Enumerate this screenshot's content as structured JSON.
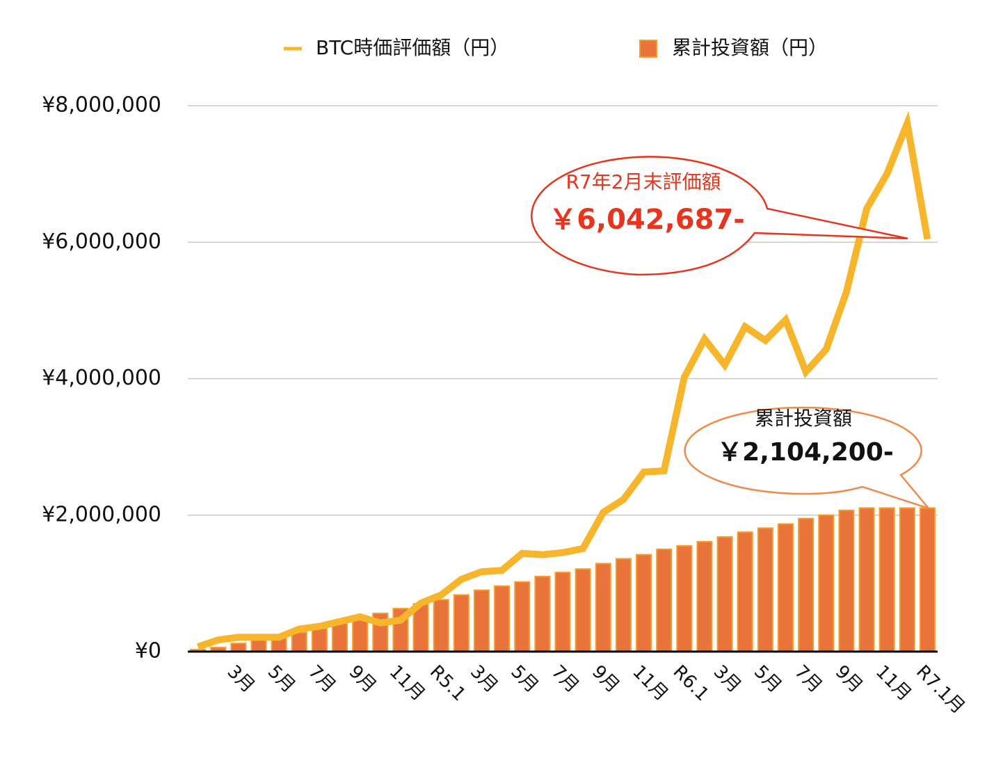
{
  "chart_data": {
    "type": "bar",
    "categories": [
      null,
      null,
      "3月",
      null,
      "5月",
      null,
      "7月",
      null,
      "9月",
      null,
      "11月",
      null,
      "R5.1",
      null,
      "3月",
      null,
      "5月",
      null,
      "7月",
      null,
      "9月",
      null,
      "11月",
      null,
      "R6.1",
      null,
      "3月",
      null,
      "5月",
      null,
      "7月",
      null,
      "9月",
      null,
      "11月",
      null,
      "R7.1月"
    ],
    "series": [
      {
        "name": "BTC時価評価額（円）",
        "type": "line",
        "color": "#f7b52c",
        "values": [
          70000,
          170000,
          210000,
          210000,
          210000,
          330000,
          370000,
          440000,
          510000,
          420000,
          460000,
          710000,
          830000,
          1060000,
          1170000,
          1190000,
          1440000,
          1420000,
          1450000,
          1510000,
          2040000,
          2230000,
          2630000,
          2650000,
          4020000,
          4580000,
          4200000,
          4760000,
          4560000,
          4860000,
          4100000,
          4430000,
          5270000,
          6490000,
          7000000,
          7740000,
          6042687
        ]
      },
      {
        "name": "累計投資額（円）",
        "type": "bar",
        "color": "#e8743b",
        "values": [
          30000,
          60000,
          120000,
          170000,
          220000,
          280000,
          340000,
          440000,
          500000,
          560000,
          630000,
          700000,
          760000,
          830000,
          900000,
          960000,
          1020000,
          1100000,
          1160000,
          1210000,
          1290000,
          1360000,
          1420000,
          1500000,
          1550000,
          1610000,
          1680000,
          1750000,
          1810000,
          1870000,
          1950000,
          2000000,
          2070000,
          2104200,
          2104200,
          2104200,
          2104200
        ]
      }
    ],
    "ylim": [
      0,
      8000000
    ],
    "yticks": [
      {
        "value": 0,
        "label": "¥0"
      },
      {
        "value": 2000000,
        "label": "¥2,000,000"
      },
      {
        "value": 4000000,
        "label": "¥4,000,000"
      },
      {
        "value": 6000000,
        "label": "¥6,000,000"
      },
      {
        "value": 8000000,
        "label": "¥8,000,000"
      }
    ],
    "grid": true,
    "legend": "top",
    "annotations": [
      {
        "text": "R7年2月末評価額",
        "value_text": "￥6,042,687-"
      },
      {
        "text": "累計投資額",
        "value_text": "￥2,104,200-"
      }
    ]
  }
}
